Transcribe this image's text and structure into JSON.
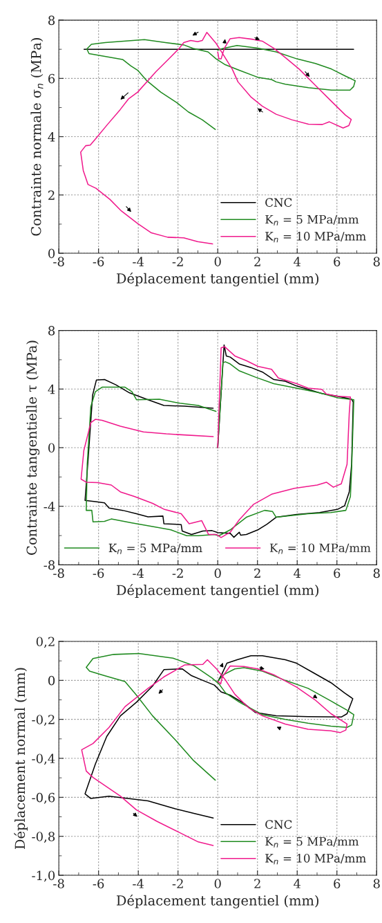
{
  "chart_data": [
    {
      "type": "line",
      "xlabel": "Déplacement tangentiel (mm)",
      "ylabel": "Contrainte normale σ$_{n}$ (MPa)",
      "xlim": [
        -8,
        8
      ],
      "xticks": [
        -8,
        -6,
        -4,
        -2,
        0,
        2,
        4,
        6,
        8
      ],
      "ylim": [
        0,
        8
      ],
      "yticks": [
        0,
        2,
        4,
        6,
        8
      ],
      "grid": true,
      "legend": "bottom right",
      "series": [
        {
          "name": "CNC",
          "color": "#000000",
          "x": [
            -6.73,
            6.84
          ],
          "values": [
            7.0,
            7.0
          ]
        },
        {
          "name": "K$_{n}$ = 5 MPa/mm",
          "color": "#1f8a1f",
          "x": [
            0,
            0.27,
            0.97,
            2.0,
            2.94,
            3.99,
            4.92,
            5.73,
            6.43,
            6.92,
            6.84,
            6.66,
            5.73,
            4.57,
            3.41,
            2.94,
            2.71,
            2.01,
            1.08,
            0.38,
            -0.08,
            -0.49,
            -1.24,
            -1.71,
            -2.64,
            -3.69,
            -4.73,
            -5.66,
            -6.36,
            -6.59,
            -6.48,
            -6.13,
            -4.79,
            -4.38,
            -4.03,
            -3.57,
            -2.87,
            -2.06,
            -1.48,
            -0.78,
            -0.12
          ],
          "values": [
            6.97,
            7.03,
            7.13,
            7.04,
            6.91,
            6.67,
            6.51,
            6.32,
            6.08,
            5.92,
            5.72,
            5.6,
            5.6,
            5.68,
            5.8,
            5.88,
            5.96,
            6.04,
            6.28,
            6.47,
            6.67,
            6.91,
            7.03,
            7.15,
            7.23,
            7.33,
            7.28,
            7.23,
            7.17,
            7.01,
            6.85,
            6.81,
            6.65,
            6.43,
            6.28,
            5.92,
            5.53,
            5.17,
            4.85,
            4.58,
            4.25
          ]
        },
        {
          "name": "K$_{n}$ = 10 MPa/mm",
          "color": "#f0198c",
          "x": [
            0,
            0.06,
            0.17,
            0.33,
            0.62,
            1.08,
            1.78,
            2.24,
            2.83,
            3.41,
            4.1,
            4.92,
            5.73,
            6.43,
            6.72,
            6.6,
            6.31,
            5.62,
            5.27,
            4.57,
            3.73,
            2.94,
            2.24,
            1.66,
            1.02,
            0.73,
            0.2,
            -0.08,
            -0.55,
            -0.78,
            -1.01,
            -1.36,
            -1.71,
            -1.94,
            -2.52,
            -3.1,
            -4.03,
            -4.5,
            -4.91,
            -5.55,
            -6.13,
            -6.42,
            -6.65,
            -6.9,
            -6.77,
            -6.53,
            -6.13,
            -5.43,
            -4.85,
            -4.03,
            -3.34,
            -2.52,
            -1.71,
            -1.01,
            -0.26
          ],
          "values": [
            6.91,
            6.67,
            6.67,
            7.03,
            7.36,
            7.4,
            7.34,
            7.28,
            7.03,
            6.71,
            6.32,
            5.76,
            5.21,
            4.74,
            4.59,
            4.38,
            4.3,
            4.51,
            4.42,
            4.43,
            4.58,
            4.77,
            5.05,
            5.37,
            5.88,
            6.32,
            6.9,
            7.2,
            7.58,
            7.3,
            7.26,
            7.3,
            7.23,
            7.03,
            6.63,
            6.24,
            5.53,
            5.29,
            4.93,
            4.42,
            3.94,
            3.71,
            3.69,
            3.47,
            2.84,
            2.36,
            2.23,
            1.85,
            1.45,
            1.02,
            0.7,
            0.55,
            0.53,
            0.4,
            0.32
          ]
        }
      ]
    },
    {
      "type": "line",
      "xlabel": "Déplacement tangentiel (mm)",
      "ylabel": "Contrainte tangentielle τ (MPa)",
      "xlim": [
        -8,
        8
      ],
      "xticks": [
        -8,
        -6,
        -4,
        -2,
        0,
        2,
        4,
        6,
        8
      ],
      "ylim": [
        -8,
        8
      ],
      "yticks": [
        -8,
        -4,
        0,
        4,
        8
      ],
      "grid": true,
      "legend": "bottom",
      "series": [
        {
          "color": "#000000",
          "x": [
            0,
            0.32,
            0.43,
            0.63,
            0.86,
            1.1,
            1.67,
            2.25,
            2.82,
            3.4,
            3.97,
            4.55,
            5.24,
            6.05,
            6.74,
            6.82,
            6.74,
            6.62,
            6.39,
            6.05,
            5.13,
            3.97,
            2.94,
            2.48,
            2.02,
            1.44,
            1.15,
            1.09,
            0.81,
            0.63,
            0,
            -0.29,
            -0.75,
            -1.32,
            -1.79,
            -1.84,
            -2.71,
            -2.76,
            -3.51,
            -4.09,
            -4.78,
            -5.47,
            -5.7,
            -6.16,
            -6.68,
            -6.51,
            -6.3,
            -6.11,
            -5.7,
            -5.13,
            -4.44,
            -3.51,
            -2.71,
            -1.67,
            -0.23
          ],
          "values": [
            0,
            7.01,
            6.26,
            6.18,
            5.94,
            5.7,
            5.47,
            5.16,
            4.65,
            4.53,
            4.21,
            3.98,
            3.69,
            3.51,
            3.3,
            3.11,
            -1.13,
            -3.02,
            -3.96,
            -4.2,
            -4.43,
            -4.56,
            -4.75,
            -5.22,
            -5.61,
            -5.93,
            -5.97,
            -5.77,
            -6.12,
            -5.85,
            -5.8,
            -5.66,
            -5.69,
            -5.93,
            -5.69,
            -5.25,
            -5.19,
            -4.67,
            -4.72,
            -4.51,
            -4.28,
            -4.12,
            -3.77,
            -3.68,
            -3.6,
            -0.5,
            3.58,
            4.61,
            4.65,
            4.29,
            3.74,
            3.27,
            2.88,
            2.83,
            2.69
          ]
        },
        {
          "name": "K$_{n}$ = 5 MPa/mm",
          "color": "#1f8a1f",
          "x": [
            0,
            0.26,
            0.38,
            0.63,
            1.09,
            1.9,
            2.82,
            3.97,
            5.13,
            6.05,
            6.85,
            6.74,
            6.68,
            6.45,
            5.7,
            4.55,
            2.94,
            2.76,
            2.36,
            1.44,
            0.63,
            0.06,
            -0.17,
            -0.98,
            -1.56,
            -2.36,
            -3.28,
            -4.32,
            -5.36,
            -5.7,
            -6.28,
            -6.34,
            -6.62,
            -6.57,
            -6.39,
            -6.16,
            -5.82,
            -4.67,
            -4.32,
            -4.09,
            -2.94,
            -1.9,
            -0.98,
            -0.09
          ],
          "values": [
            0,
            5.79,
            5.86,
            5.71,
            5.24,
            4.81,
            4.37,
            4.06,
            3.74,
            3.4,
            3.27,
            -1.45,
            -3.33,
            -4.28,
            -4.43,
            -4.51,
            -4.75,
            -4.36,
            -4.28,
            -4.75,
            -5.61,
            -6.01,
            -5.93,
            -6.01,
            -6.01,
            -5.61,
            -5.38,
            -5.14,
            -4.87,
            -5.03,
            -5.06,
            -4.28,
            -4.28,
            -1.13,
            2.8,
            3.82,
            4.13,
            4.13,
            3.82,
            3.27,
            3.3,
            3.03,
            2.88,
            2.48
          ]
        },
        {
          "name": "K$_{n}$ = 10 MPa/mm",
          "color": "#f0198c",
          "x": [
            0,
            0.17,
            0.35,
            0.86,
            1.44,
            2.02,
            2.71,
            3.05,
            3.97,
            4.55,
            5.24,
            5.47,
            6.05,
            6.68,
            6.62,
            6.51,
            6.22,
            5.82,
            5.47,
            5.01,
            3.86,
            2.71,
            1.79,
            1.09,
            0.63,
            0.17,
            -0.06,
            -0.46,
            -0.81,
            -1.44,
            -1.84,
            -2.71,
            -3.28,
            -4.2,
            -4.9,
            -5.36,
            -6.05,
            -6.62,
            -6.88,
            -6.74,
            -6.39,
            -6.16,
            -5.82,
            -4.9,
            -3.74,
            -2.59,
            -0.23
          ],
          "values": [
            0,
            6.81,
            6.89,
            6.26,
            5.94,
            5.55,
            5.35,
            4.76,
            4.37,
            4.06,
            3.98,
            3.66,
            3.51,
            3.46,
            2.33,
            -1.13,
            -2.47,
            -2.7,
            -2.36,
            -2.55,
            -2.78,
            -3.18,
            -3.88,
            -4.91,
            -5.77,
            -6.13,
            -5.93,
            -5.93,
            -4.98,
            -5.19,
            -4.51,
            -4.2,
            -3.8,
            -3.33,
            -3.02,
            -2.55,
            -2.39,
            -2.36,
            -2.15,
            -0.19,
            1.7,
            1.93,
            1.86,
            1.46,
            1.07,
            0.94,
            0.75
          ]
        }
      ]
    },
    {
      "type": "line",
      "xlabel": "Déplacement tangentiel (mm)",
      "ylabel": "Déplacement normal (mm)",
      "xlim": [
        -8,
        8
      ],
      "xticks": [
        -8,
        -6,
        -4,
        -2,
        0,
        2,
        4,
        6,
        8
      ],
      "ylim": [
        -1.0,
        0.2
      ],
      "yticks": [
        {
          "value": -1.0,
          "label": "-1,0"
        },
        {
          "value": -0.8,
          "label": "-0,8"
        },
        {
          "value": -0.6,
          "label": "-0,6"
        },
        {
          "value": -0.4,
          "label": "-0,4"
        },
        {
          "value": -0.2,
          "label": "-0,2"
        },
        0,
        {
          "value": 0.2,
          "label": "0,2"
        }
      ],
      "grid": true,
      "legend": "bottom right",
      "series": [
        {
          "name": "CNC",
          "color": "#000000",
          "x": [
            0,
            0.2,
            0.46,
            0.98,
            1.67,
            2.25,
            3.4,
            3.97,
            4.78,
            5.7,
            6.39,
            6.8,
            6.51,
            6.22,
            4.55,
            2.94,
            1.9,
            1.32,
            0.63,
            0.17,
            -0.17,
            -0.75,
            -1.32,
            -1.79,
            -2.71,
            -3.28,
            -4.09,
            -4.9,
            -5.59,
            -6.16,
            -6.68,
            -6.39,
            -5.47,
            -4.67,
            -3.51,
            -2.13,
            -1.21,
            -0.23
          ],
          "values": [
            -0.006,
            0.03,
            0.088,
            0.106,
            0.126,
            0.126,
            0.106,
            0.088,
            0.041,
            -0.012,
            -0.065,
            -0.094,
            -0.171,
            -0.188,
            -0.186,
            -0.182,
            -0.165,
            -0.118,
            -0.076,
            -0.059,
            -0.024,
            0,
            0.024,
            0.059,
            0.055,
            -0.029,
            -0.112,
            -0.182,
            -0.288,
            -0.429,
            -0.582,
            -0.606,
            -0.594,
            -0.604,
            -0.618,
            -0.659,
            -0.682,
            -0.706
          ]
        },
        {
          "name": "K$_{n}$ = 5 MPa/mm",
          "color": "#1f8a1f",
          "x": [
            0,
            0.29,
            0.86,
            1.32,
            2.25,
            3.4,
            4.55,
            5.7,
            6.51,
            6.85,
            6.74,
            6.51,
            5.7,
            4.55,
            3.4,
            2.25,
            1.09,
            0.4,
            0.06,
            -0.29,
            -1.21,
            -2.25,
            -3.97,
            -5.24,
            -6.28,
            -6.62,
            -6.45,
            -5.7,
            -4.67,
            -4.09,
            -3.28,
            -2.13,
            -1.21,
            -0.12
          ],
          "values": [
            -0.004,
            0.029,
            0.059,
            0.065,
            0.047,
            0,
            -0.041,
            -0.106,
            -0.153,
            -0.176,
            -0.229,
            -0.241,
            -0.235,
            -0.22,
            -0.2,
            -0.176,
            -0.112,
            -0.065,
            -0.018,
            0.012,
            0.076,
            0.114,
            0.138,
            0.133,
            0.112,
            0.067,
            0.047,
            0.024,
            -0.006,
            -0.076,
            -0.182,
            -0.306,
            -0.412,
            -0.512
          ]
        },
        {
          "name": "K$_{n}$ = 10 MPa/mm",
          "color": "#f0198c",
          "x": [
            0,
            0.15,
            0.23,
            0.63,
            1.32,
            2.02,
            2.82,
            3.97,
            4.9,
            5.7,
            6.51,
            6.45,
            6.16,
            5.7,
            4.55,
            3.4,
            2.25,
            1.56,
            0.86,
            0.4,
            -0.06,
            -0.52,
            -0.75,
            -1.67,
            -2.71,
            -3.51,
            -4.67,
            -5.47,
            -6.28,
            -6.85,
            -6.62,
            -6.28,
            -4.9,
            -4.09,
            -3.05,
            -1.9,
            -0.98,
            -0.23
          ],
          "values": [
            -0.004,
            -0.018,
            0.018,
            0.074,
            0.071,
            0.059,
            0.029,
            -0.035,
            -0.1,
            -0.171,
            -0.224,
            -0.255,
            -0.268,
            -0.259,
            -0.251,
            -0.224,
            -0.182,
            -0.141,
            -0.071,
            0,
            0.059,
            0.106,
            0.082,
            0.079,
            0.018,
            -0.041,
            -0.135,
            -0.241,
            -0.324,
            -0.356,
            -0.465,
            -0.498,
            -0.594,
            -0.665,
            -0.724,
            -0.782,
            -0.829,
            -0.847
          ]
        }
      ]
    }
  ]
}
